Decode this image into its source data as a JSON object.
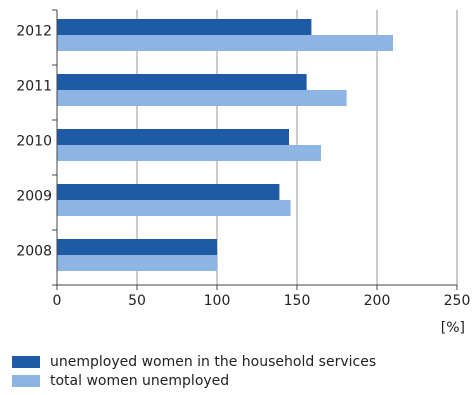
{
  "chart_data": {
    "type": "bar",
    "orientation": "horizontal",
    "categories": [
      "2012",
      "2011",
      "2010",
      "2009",
      "2008"
    ],
    "series": [
      {
        "name": "unemployed women in the household services",
        "color": "#1f5aa6",
        "values": [
          159,
          156,
          145,
          139,
          100
        ]
      },
      {
        "name": "total women unemployed",
        "color": "#8db4e2",
        "values": [
          210,
          181,
          165,
          146,
          100
        ]
      }
    ],
    "xlabel": "[%]",
    "xlim": [
      0,
      250
    ],
    "xticks": [
      "0",
      "50",
      "100",
      "150",
      "200",
      "250"
    ],
    "grid": "vertical",
    "legend_position": "bottom"
  }
}
